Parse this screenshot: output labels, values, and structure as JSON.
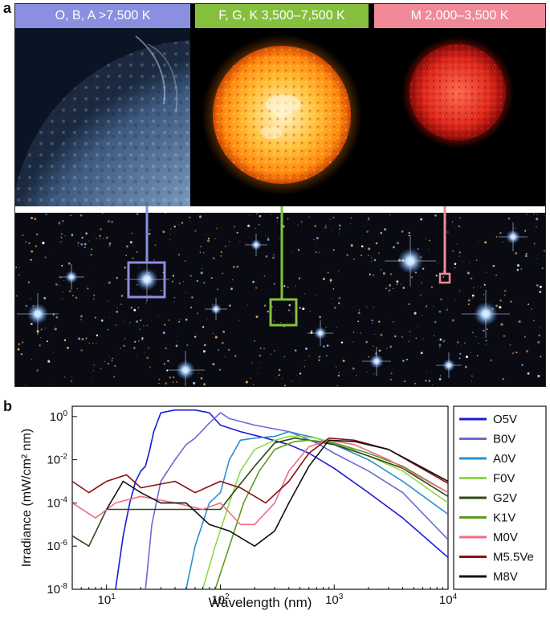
{
  "panel_labels": {
    "a": "a",
    "b": "b"
  },
  "headers": [
    {
      "text": "O, B, A >7,500 K",
      "color": "#8a8fe0"
    },
    {
      "text": "F, G, K 3,500–7,500 K",
      "color": "#86bf3d"
    },
    {
      "text": "M 2,000–3,500 K",
      "color": "#f08a98"
    }
  ],
  "callout_colors": {
    "blue": "#8a8fe0",
    "green": "#86bf3d",
    "pink": "#f08a98"
  },
  "chart_data": {
    "type": "line",
    "xlabel": "Wavelength (nm)",
    "ylabel": "Irradiance (mW/cm² nm)",
    "xscale": "log",
    "yscale": "log",
    "xlim": [
      5,
      10000
    ],
    "ylim": [
      1e-08,
      3
    ],
    "x_ticks": [
      {
        "value": 10,
        "base": "10",
        "exp": "1"
      },
      {
        "value": 100,
        "base": "10",
        "exp": "2"
      },
      {
        "value": 1000,
        "base": "10",
        "exp": "3"
      },
      {
        "value": 10000,
        "base": "10",
        "exp": "4"
      }
    ],
    "y_ticks": [
      {
        "value": 1,
        "base": "10",
        "exp": "0"
      },
      {
        "value": 0.01,
        "base": "10",
        "exp": "-2"
      },
      {
        "value": 0.0001,
        "base": "10",
        "exp": "-4"
      },
      {
        "value": 1e-06,
        "base": "10",
        "exp": "-6"
      },
      {
        "value": 1e-08,
        "base": "10",
        "exp": "-8"
      }
    ],
    "legend_position": "right",
    "series": [
      {
        "name": "O5V",
        "color": "#1a1ad6",
        "points": [
          [
            12,
            1e-08
          ],
          [
            14,
            3e-06
          ],
          [
            16,
            0.0001
          ],
          [
            18,
            0.001
          ],
          [
            20,
            0.003
          ],
          [
            22,
            0.005
          ],
          [
            24,
            0.03
          ],
          [
            26,
            0.2
          ],
          [
            30,
            1.5
          ],
          [
            40,
            2
          ],
          [
            60,
            2
          ],
          [
            80,
            1.5
          ],
          [
            100,
            0.4
          ],
          [
            150,
            0.2
          ],
          [
            250,
            0.1
          ],
          [
            400,
            0.05
          ],
          [
            600,
            0.02
          ],
          [
            1000,
            0.004
          ],
          [
            2000,
            0.0003
          ],
          [
            4000,
            2e-05
          ],
          [
            10000,
            3e-07
          ]
        ]
      },
      {
        "name": "B0V",
        "color": "#6a6ad6",
        "points": [
          [
            22,
            1e-08
          ],
          [
            25,
            1e-05
          ],
          [
            30,
            0.001
          ],
          [
            40,
            0.01
          ],
          [
            50,
            0.05
          ],
          [
            60,
            0.1
          ],
          [
            80,
            0.5
          ],
          [
            100,
            1.5
          ],
          [
            120,
            0.8
          ],
          [
            200,
            0.4
          ],
          [
            400,
            0.2
          ],
          [
            700,
            0.06
          ],
          [
            1000,
            0.02
          ],
          [
            2000,
            0.003
          ],
          [
            4000,
            0.0003
          ],
          [
            10000,
            2e-06
          ]
        ]
      },
      {
        "name": "A0V",
        "color": "#2b8fd0",
        "points": [
          [
            50,
            1e-08
          ],
          [
            60,
            1e-06
          ],
          [
            80,
            0.0001
          ],
          [
            100,
            0.0003
          ],
          [
            120,
            0.01
          ],
          [
            150,
            0.08
          ],
          [
            200,
            0.1
          ],
          [
            300,
            0.12
          ],
          [
            400,
            0.2
          ],
          [
            500,
            0.15
          ],
          [
            700,
            0.1
          ],
          [
            1000,
            0.05
          ],
          [
            2000,
            0.01
          ],
          [
            4000,
            0.001
          ],
          [
            10000,
            3e-05
          ]
        ]
      },
      {
        "name": "F0V",
        "color": "#8fd84a",
        "points": [
          [
            70,
            1e-08
          ],
          [
            90,
            1e-06
          ],
          [
            120,
            0.0001
          ],
          [
            150,
            0.003
          ],
          [
            200,
            0.03
          ],
          [
            300,
            0.08
          ],
          [
            400,
            0.12
          ],
          [
            500,
            0.12
          ],
          [
            700,
            0.1
          ],
          [
            1000,
            0.06
          ],
          [
            2000,
            0.015
          ],
          [
            4000,
            0.003
          ],
          [
            10000,
            0.0001
          ]
        ]
      },
      {
        "name": "G2V",
        "color": "#2e4a14",
        "points": [
          [
            5,
            3e-06
          ],
          [
            7,
            1e-06
          ],
          [
            10,
            5e-05
          ],
          [
            30,
            5e-05
          ],
          [
            60,
            5e-05
          ],
          [
            100,
            5e-05
          ],
          [
            130,
            0.0003
          ],
          [
            200,
            0.005
          ],
          [
            300,
            0.06
          ],
          [
            450,
            0.1
          ],
          [
            600,
            0.08
          ],
          [
            1000,
            0.05
          ],
          [
            2000,
            0.015
          ],
          [
            4000,
            0.004
          ],
          [
            10000,
            0.0002
          ]
        ]
      },
      {
        "name": "K1V",
        "color": "#5e9a22",
        "points": [
          [
            90,
            1e-08
          ],
          [
            120,
            1e-06
          ],
          [
            160,
            0.0001
          ],
          [
            220,
            0.003
          ],
          [
            300,
            0.03
          ],
          [
            450,
            0.07
          ],
          [
            600,
            0.08
          ],
          [
            1000,
            0.06
          ],
          [
            2000,
            0.02
          ],
          [
            4000,
            0.005
          ],
          [
            10000,
            0.0003
          ]
        ]
      },
      {
        "name": "M0V",
        "color": "#f06c86",
        "points": [
          [
            5,
            0.0001
          ],
          [
            8,
            2e-05
          ],
          [
            12,
            0.0001
          ],
          [
            20,
            0.0002
          ],
          [
            40,
            0.0001
          ],
          [
            70,
            5e-05
          ],
          [
            100,
            0.0001
          ],
          [
            150,
            1e-05
          ],
          [
            200,
            1e-05
          ],
          [
            300,
            0.0001
          ],
          [
            400,
            0.003
          ],
          [
            600,
            0.04
          ],
          [
            900,
            0.08
          ],
          [
            1500,
            0.05
          ],
          [
            3000,
            0.01
          ],
          [
            10000,
            0.0003
          ]
        ]
      },
      {
        "name": "M5.5Ve",
        "color": "#8a1010",
        "points": [
          [
            5,
            0.001
          ],
          [
            7,
            0.0003
          ],
          [
            10,
            0.001
          ],
          [
            15,
            0.002
          ],
          [
            20,
            0.0005
          ],
          [
            40,
            0.001
          ],
          [
            60,
            0.0003
          ],
          [
            100,
            0.001
          ],
          [
            150,
            0.0005
          ],
          [
            250,
            0.0001
          ],
          [
            400,
            0.001
          ],
          [
            600,
            0.02
          ],
          [
            900,
            0.1
          ],
          [
            1500,
            0.08
          ],
          [
            3000,
            0.03
          ],
          [
            10000,
            0.0008
          ]
        ]
      },
      {
        "name": "M8V",
        "color": "#111111",
        "points": [
          [
            10,
            5e-05
          ],
          [
            14,
            0.001
          ],
          [
            20,
            0.0003
          ],
          [
            30,
            0.0001
          ],
          [
            50,
            0.0001
          ],
          [
            80,
            1e-05
          ],
          [
            120,
            5e-06
          ],
          [
            200,
            1e-06
          ],
          [
            300,
            5e-06
          ],
          [
            400,
            0.0001
          ],
          [
            600,
            0.005
          ],
          [
            900,
            0.08
          ],
          [
            1500,
            0.07
          ],
          [
            3000,
            0.03
          ],
          [
            10000,
            0.001
          ]
        ]
      }
    ]
  }
}
